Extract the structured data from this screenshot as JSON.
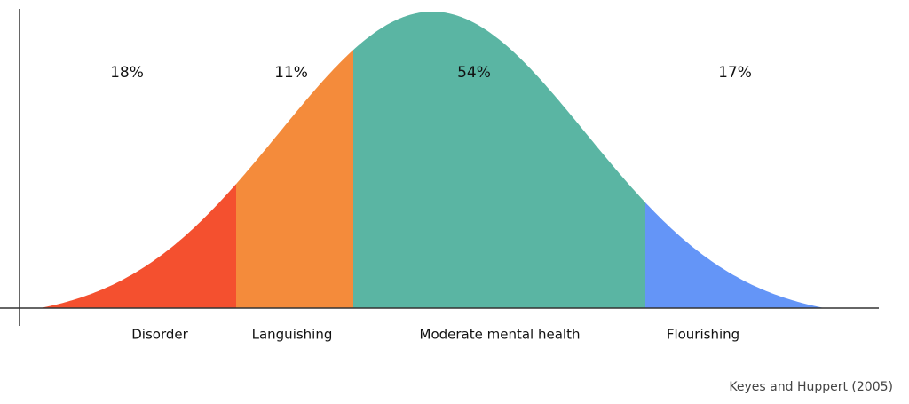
{
  "segments": [
    {
      "name": "Disorder",
      "percent_label": "18%",
      "color": "#f4502f"
    },
    {
      "name": "Languishing",
      "percent_label": "11%",
      "color": "#f48b3b"
    },
    {
      "name": "Moderate mental health",
      "percent_label": "54%",
      "color": "#5ab5a3"
    },
    {
      "name": "Flourishing",
      "percent_label": "17%",
      "color": "#6495f7"
    }
  ],
  "source": "Keyes and Huppert (2005)"
}
